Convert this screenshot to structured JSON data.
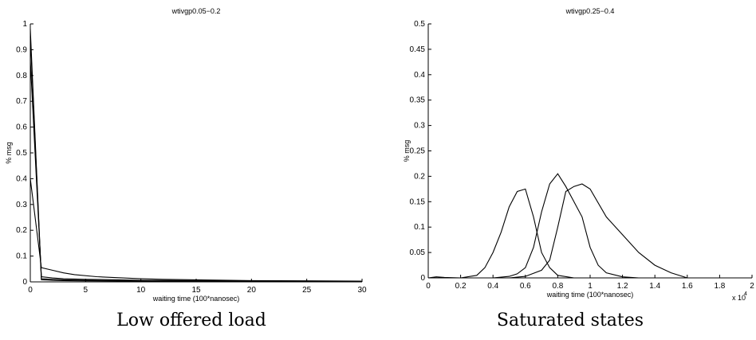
{
  "captions": {
    "left": "Low offered load",
    "right": "Saturated states"
  },
  "chart_data": [
    {
      "type": "line",
      "title": "wtivgp0.05−0.2",
      "xlabel": "waiting time (100*nanosec)",
      "ylabel": "% msg",
      "xlim": [
        0,
        30
      ],
      "ylim": [
        0,
        1
      ],
      "xticks": [
        0,
        5,
        10,
        15,
        20,
        25,
        30
      ],
      "yticks": [
        0,
        0.1,
        0.2,
        0.3,
        0.4,
        0.5,
        0.6,
        0.7,
        0.8,
        0.9,
        1
      ],
      "tick_labels_y": [
        "0",
        "0.1",
        "0.2",
        "0.3",
        "0.4",
        "0.5",
        "0.6",
        "0.7",
        "0.8",
        "0.9",
        "1"
      ],
      "tick_labels_x": [
        "0",
        "5",
        "10",
        "15",
        "20",
        "25",
        "30"
      ],
      "x_multiplier": "",
      "grid": false,
      "line_color": "#000000",
      "series": [
        {
          "x": [
            0,
            1,
            2,
            3,
            4,
            6,
            8,
            10,
            12,
            15,
            20,
            25,
            30
          ],
          "values": [
            0.4,
            0.055,
            0.045,
            0.035,
            0.028,
            0.02,
            0.016,
            0.012,
            0.01,
            0.008,
            0.005,
            0.004,
            0.003
          ]
        },
        {
          "x": [
            0,
            1,
            2,
            3,
            5,
            8,
            10,
            15,
            20,
            25,
            30
          ],
          "values": [
            0.86,
            0.02,
            0.015,
            0.012,
            0.01,
            0.008,
            0.006,
            0.005,
            0.004,
            0.003,
            0.002
          ]
        },
        {
          "x": [
            0,
            1,
            2,
            3,
            5,
            8,
            10,
            15,
            20,
            25,
            30
          ],
          "values": [
            0.95,
            0.012,
            0.01,
            0.008,
            0.006,
            0.005,
            0.004,
            0.003,
            0.002,
            0.002,
            0.001
          ]
        },
        {
          "x": [
            0,
            1,
            2,
            3,
            5,
            8,
            10,
            15,
            20,
            25,
            30
          ],
          "values": [
            0.98,
            0.008,
            0.006,
            0.005,
            0.004,
            0.003,
            0.002,
            0.002,
            0.001,
            0.001,
            0.001
          ]
        }
      ]
    },
    {
      "type": "line",
      "title": "wtivgp0.25−0.4",
      "xlabel": "waiting time (100*nanosec)",
      "ylabel": "% msg",
      "xlim": [
        0,
        20000
      ],
      "ylim": [
        0,
        0.5
      ],
      "xticks": [
        0,
        2000,
        4000,
        6000,
        8000,
        10000,
        12000,
        14000,
        16000,
        18000,
        20000
      ],
      "yticks": [
        0,
        0.05,
        0.1,
        0.15,
        0.2,
        0.25,
        0.3,
        0.35,
        0.4,
        0.45,
        0.5
      ],
      "tick_labels_y": [
        "0",
        "0.05",
        "0.1",
        "0.15",
        "0.2",
        "0.25",
        "0.3",
        "0.35",
        "0.4",
        "0.45",
        "0.5"
      ],
      "tick_labels_x": [
        "0",
        "0.2",
        "0.4",
        "0.6",
        "0.8",
        "1",
        "1.2",
        "1.4",
        "1.6",
        "1.8",
        "2"
      ],
      "x_multiplier": "x 10",
      "x_multiplier_exp": "4",
      "grid": false,
      "line_color": "#000000",
      "series": [
        {
          "x": [
            0,
            500,
            1000,
            2000,
            3000,
            3500,
            4000,
            4500,
            5000,
            5500,
            6000,
            6500,
            7000,
            7500,
            8000,
            9000,
            10000
          ],
          "values": [
            0,
            0.002,
            0.001,
            0,
            0.005,
            0.02,
            0.05,
            0.09,
            0.14,
            0.17,
            0.175,
            0.12,
            0.05,
            0.02,
            0.005,
            0,
            0
          ]
        },
        {
          "x": [
            0,
            3000,
            4000,
            5000,
            5500,
            6000,
            6500,
            7000,
            7500,
            8000,
            8500,
            9000,
            9500,
            10000,
            10500,
            11000,
            12000,
            13000
          ],
          "values": [
            0,
            0,
            0,
            0.003,
            0.008,
            0.02,
            0.06,
            0.13,
            0.185,
            0.205,
            0.18,
            0.15,
            0.12,
            0.06,
            0.025,
            0.01,
            0.002,
            0
          ]
        },
        {
          "x": [
            0,
            5000,
            6000,
            7000,
            7500,
            8000,
            8500,
            9000,
            9500,
            10000,
            11000,
            12000,
            13000,
            14000,
            15000,
            16000
          ],
          "values": [
            0,
            0,
            0.003,
            0.015,
            0.035,
            0.1,
            0.17,
            0.18,
            0.185,
            0.175,
            0.12,
            0.085,
            0.05,
            0.025,
            0.01,
            0
          ]
        }
      ]
    }
  ]
}
